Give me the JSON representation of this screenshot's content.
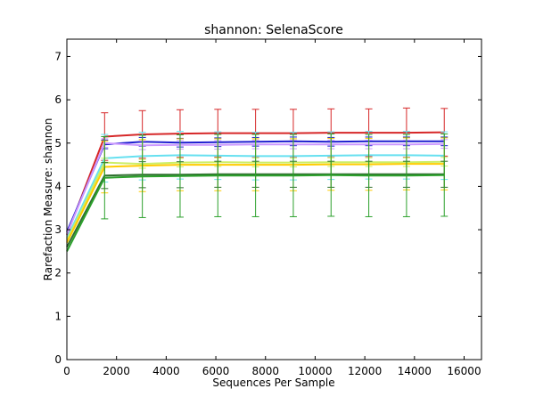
{
  "chart_data": {
    "type": "line",
    "title": "shannon: SelenaScore",
    "xlabel": "Sequences Per Sample",
    "ylabel": "Rarefaction Measure: shannon",
    "xlim": [
      0,
      16700
    ],
    "ylim": [
      0,
      7.4
    ],
    "xticks": [
      0,
      2000,
      4000,
      6000,
      8000,
      10000,
      12000,
      14000,
      16000
    ],
    "yticks": [
      0,
      1,
      2,
      3,
      4,
      5,
      6,
      7
    ],
    "x": [
      0,
      1520,
      3040,
      4560,
      6080,
      7600,
      9120,
      10640,
      12160,
      13680,
      15200
    ],
    "grid": false,
    "legend": "none",
    "series": [
      {
        "color": "#d62728",
        "values": [
          2.88,
          5.15,
          5.2,
          5.22,
          5.23,
          5.23,
          5.23,
          5.24,
          5.24,
          5.24,
          5.25
        ],
        "errors": [
          0,
          0.55,
          0.55,
          0.55,
          0.55,
          0.55,
          0.55,
          0.55,
          0.55,
          0.57,
          0.55
        ]
      },
      {
        "color": "#1f1fd0",
        "values": [
          2.95,
          4.97,
          5.03,
          5.01,
          5.02,
          5.03,
          5.04,
          5.03,
          5.04,
          5.04,
          5.04
        ],
        "errors": [
          0,
          0.1,
          0.1,
          0.1,
          0.1,
          0.1,
          0.1,
          0.1,
          0.1,
          0.1,
          0.1
        ]
      },
      {
        "color": "#cc99ff",
        "values": [
          2.9,
          5.0,
          4.95,
          4.96,
          4.96,
          4.97,
          4.97,
          4.97,
          4.97,
          4.97,
          4.98
        ],
        "errors": [
          0,
          0.1,
          0.1,
          0.1,
          0.1,
          0.1,
          0.1,
          0.1,
          0.1,
          0.1,
          0.1
        ]
      },
      {
        "color": "#66e0f0",
        "values": [
          2.8,
          4.65,
          4.7,
          4.72,
          4.71,
          4.7,
          4.7,
          4.71,
          4.72,
          4.72,
          4.71
        ],
        "errors": [
          0,
          0.55,
          0.55,
          0.55,
          0.55,
          0.55,
          0.55,
          0.55,
          0.55,
          0.55,
          0.55
        ]
      },
      {
        "color": "#ccee66",
        "values": [
          2.75,
          4.55,
          4.52,
          4.55,
          4.56,
          4.55,
          4.55,
          4.56,
          4.56,
          4.56,
          4.57
        ],
        "errors": [
          0,
          0.1,
          0.1,
          0.1,
          0.1,
          0.1,
          0.1,
          0.1,
          0.1,
          0.1,
          0.1
        ]
      },
      {
        "color": "#ffcc00",
        "values": [
          2.7,
          4.45,
          4.48,
          4.5,
          4.5,
          4.5,
          4.5,
          4.51,
          4.51,
          4.52,
          4.52
        ],
        "errors": [
          0,
          0.6,
          0.6,
          0.6,
          0.6,
          0.6,
          0.6,
          0.6,
          0.6,
          0.6,
          0.6
        ]
      },
      {
        "color": "#2f6f2f",
        "values": [
          2.6,
          4.25,
          4.27,
          4.27,
          4.28,
          4.28,
          4.28,
          4.28,
          4.28,
          4.28,
          4.28
        ],
        "errors": [
          0,
          0.3,
          0.3,
          0.3,
          0.3,
          0.3,
          0.3,
          0.3,
          0.3,
          0.3,
          0.3
        ]
      },
      {
        "color": "#2ca02c",
        "values": [
          2.5,
          4.2,
          4.23,
          4.24,
          4.25,
          4.25,
          4.25,
          4.26,
          4.25,
          4.25,
          4.26
        ],
        "errors": [
          0,
          0.95,
          0.95,
          0.95,
          0.95,
          0.95,
          0.95,
          0.95,
          0.95,
          0.95,
          0.95
        ]
      }
    ]
  }
}
